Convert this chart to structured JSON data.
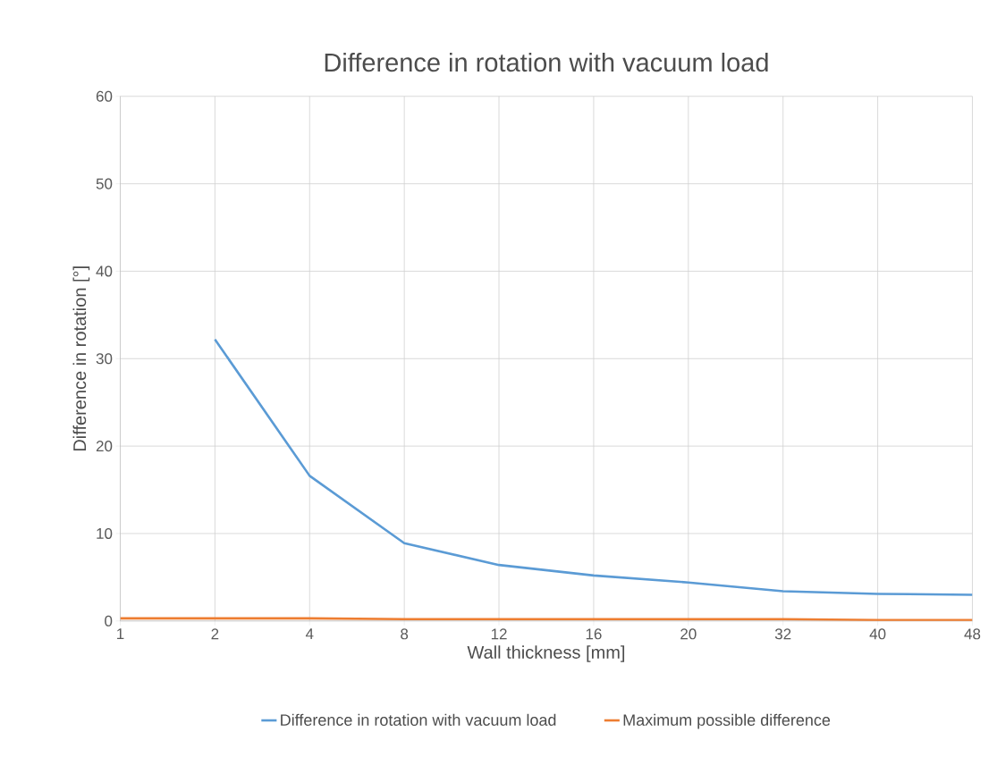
{
  "chart_data": {
    "type": "line",
    "title": "Difference in rotation with vacuum load",
    "xlabel": "Wall thickness [mm]",
    "ylabel": "Difference in rotation [°]",
    "categories": [
      "1",
      "2",
      "4",
      "8",
      "12",
      "16",
      "20",
      "32",
      "40",
      "48"
    ],
    "series": [
      {
        "name": "Difference in rotation with vacuum load",
        "color": "#5b9bd5",
        "values": [
          null,
          32.2,
          16.6,
          8.9,
          6.4,
          5.2,
          4.4,
          3.4,
          3.1,
          3.0
        ]
      },
      {
        "name": "Maximum possible difference",
        "color": "#ed7d31",
        "values": [
          0.3,
          0.3,
          0.3,
          0.2,
          0.2,
          0.2,
          0.2,
          0.2,
          0.1,
          0.1
        ]
      }
    ],
    "ylim": [
      0,
      60
    ],
    "yticks": [
      0,
      10,
      20,
      30,
      40,
      50,
      60
    ],
    "grid": true,
    "legend": "bottom",
    "marker": "none",
    "line_style": "solid"
  }
}
